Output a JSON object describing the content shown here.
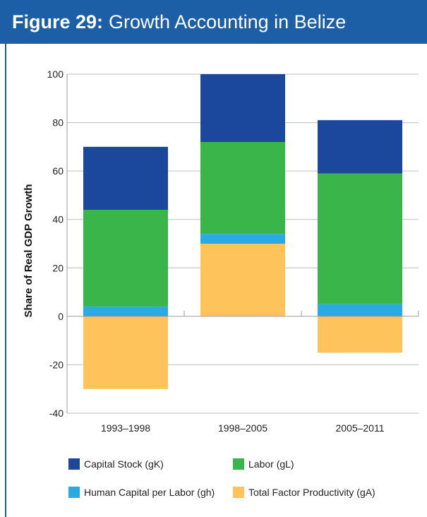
{
  "figure": {
    "label": "Figure 29:",
    "title": "Growth Accounting in Belize"
  },
  "chart_data": {
    "type": "bar",
    "stacked": true,
    "categories": [
      "1993–1998",
      "1998–2005",
      "2005–2011"
    ],
    "ylabel": "Share of Real GDP Growth",
    "ylim": [
      -40,
      100
    ],
    "yticks": [
      -40,
      -20,
      0,
      20,
      40,
      60,
      80,
      100
    ],
    "grid": true,
    "legend_position": "bottom",
    "series": [
      {
        "name": "Total Factor Productivity (gA)",
        "color": "#fec35a",
        "values": [
          -30,
          30,
          -15
        ]
      },
      {
        "name": "Human Capital per Labor (gh)",
        "color": "#29aae2",
        "values": [
          4,
          4,
          5
        ]
      },
      {
        "name": "Labor (gL)",
        "color": "#3ab54a",
        "values": [
          40,
          38,
          54
        ]
      },
      {
        "name": "Capital Stock (gK)",
        "color": "#1b479c",
        "values": [
          26,
          28,
          22
        ]
      }
    ],
    "legend_order": [
      3,
      2,
      1,
      0
    ]
  }
}
